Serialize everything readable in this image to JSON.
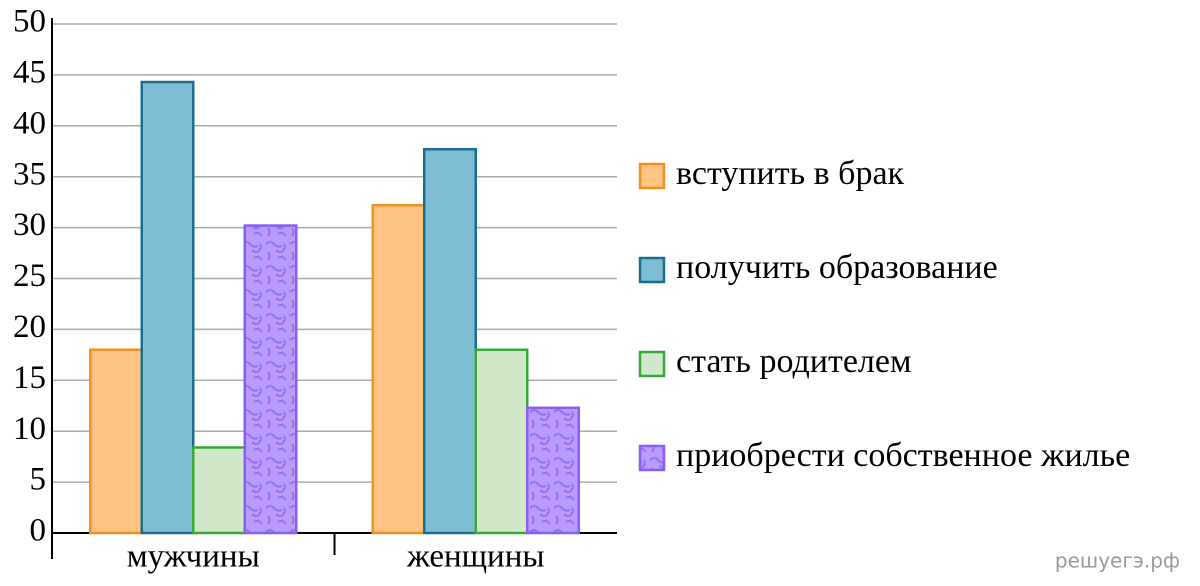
{
  "chart_data": {
    "type": "bar",
    "categories": [
      "мужчины",
      "женщины"
    ],
    "series": [
      {
        "name": "вступить в брак",
        "color": "#ffc382",
        "edgecolor": "#f0901e",
        "values": [
          18,
          32.2
        ]
      },
      {
        "name": "получить образование",
        "color": "#7fbdd4",
        "edgecolor": "#1a6f8f",
        "values": [
          44.3,
          37.7
        ]
      },
      {
        "name": "стать родителем",
        "color": "#cfe8c9",
        "edgecolor": "#38a838",
        "values": [
          8.4,
          18
        ]
      },
      {
        "name": "приобрести собственное жилье",
        "color": "#b89cff",
        "edgecolor": "#8a5cf0",
        "hatch": "wave",
        "values": [
          30.2,
          12.3
        ]
      }
    ],
    "ylim": [
      0,
      50
    ],
    "yticks": [
      0,
      5,
      10,
      15,
      20,
      25,
      30,
      35,
      40,
      45,
      50
    ],
    "grid": true,
    "legend": "right"
  },
  "watermark": "решуегэ.рф"
}
